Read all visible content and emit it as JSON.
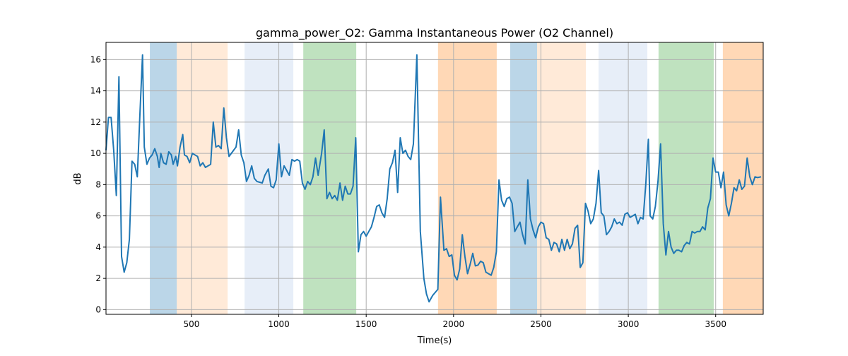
{
  "chart_data": {
    "type": "line",
    "title": "gamma_power_O2: Gamma Instantaneous Power (O2 Channel)",
    "xlabel": "Time(s)",
    "ylabel": "dB",
    "xlim": [
      11,
      3772
    ],
    "ylim": [
      -0.3,
      17.1
    ],
    "xticks": [
      500,
      1000,
      1500,
      2000,
      2500,
      3000,
      3500
    ],
    "yticks": [
      0,
      2,
      4,
      6,
      8,
      10,
      12,
      14,
      16
    ],
    "grid": true,
    "line_color": "#1f77b4",
    "bands": [
      {
        "start": 262,
        "end": 416,
        "color": "#1f77b4",
        "alpha": 0.3
      },
      {
        "start": 416,
        "end": 707,
        "color": "#ff7f0e",
        "alpha": 0.16
      },
      {
        "start": 804,
        "end": 1083,
        "color": "#aec7e8",
        "alpha": 0.3
      },
      {
        "start": 1140,
        "end": 1443,
        "color": "#2ca02c",
        "alpha": 0.3
      },
      {
        "start": 1911,
        "end": 2247,
        "color": "#ff7f0e",
        "alpha": 0.3
      },
      {
        "start": 2324,
        "end": 2478,
        "color": "#1f77b4",
        "alpha": 0.3
      },
      {
        "start": 2478,
        "end": 2757,
        "color": "#ff7f0e",
        "alpha": 0.16
      },
      {
        "start": 2830,
        "end": 3109,
        "color": "#aec7e8",
        "alpha": 0.3
      },
      {
        "start": 3173,
        "end": 3489,
        "color": "#2ca02c",
        "alpha": 0.3
      },
      {
        "start": 3541,
        "end": 3772,
        "color": "#ff7f0e",
        "alpha": 0.3
      }
    ],
    "series": [
      {
        "name": "gamma_power_O2",
        "x": [
          10,
          25,
          40,
          55,
          70,
          85,
          100,
          115,
          130,
          145,
          160,
          175,
          190,
          205,
          220,
          230,
          245,
          260,
          275,
          290,
          305,
          315,
          325,
          340,
          355,
          370,
          385,
          395,
          410,
          420,
          435,
          450,
          460,
          475,
          490,
          505,
          520,
          535,
          550,
          565,
          580,
          595,
          610,
          625,
          640,
          655,
          670,
          685,
          700,
          715,
          735,
          755,
          770,
          785,
          800,
          815,
          830,
          845,
          860,
          875,
          890,
          905,
          920,
          940,
          955,
          970,
          985,
          1000,
          1015,
          1030,
          1045,
          1060,
          1075,
          1090,
          1105,
          1120,
          1135,
          1150,
          1165,
          1180,
          1195,
          1210,
          1225,
          1245,
          1260,
          1275,
          1290,
          1305,
          1320,
          1335,
          1350,
          1365,
          1380,
          1395,
          1410,
          1425,
          1440,
          1455,
          1470,
          1485,
          1500,
          1515,
          1530,
          1545,
          1560,
          1575,
          1590,
          1605,
          1620,
          1635,
          1650,
          1665,
          1680,
          1695,
          1710,
          1725,
          1740,
          1755,
          1770,
          1790,
          1810,
          1830,
          1845,
          1860,
          1880,
          1910,
          1925,
          1945,
          1960,
          1975,
          1990,
          2005,
          2020,
          2035,
          2050,
          2065,
          2080,
          2095,
          2110,
          2125,
          2140,
          2155,
          2170,
          2185,
          2200,
          2215,
          2230,
          2245,
          2260,
          2275,
          2290,
          2305,
          2320,
          2335,
          2350,
          2365,
          2380,
          2395,
          2410,
          2425,
          2440,
          2455,
          2470,
          2485,
          2500,
          2515,
          2530,
          2545,
          2560,
          2575,
          2590,
          2605,
          2620,
          2635,
          2650,
          2665,
          2680,
          2695,
          2710,
          2725,
          2740,
          2755,
          2770,
          2785,
          2800,
          2815,
          2830,
          2845,
          2860,
          2875,
          2890,
          2905,
          2920,
          2935,
          2950,
          2965,
          2980,
          2995,
          3010,
          3025,
          3040,
          3055,
          3070,
          3085,
          3100,
          3115,
          3125,
          3140,
          3155,
          3170,
          3185,
          3200,
          3215,
          3230,
          3245,
          3260,
          3275,
          3290,
          3305,
          3320,
          3335,
          3350,
          3365,
          3380,
          3395,
          3410,
          3425,
          3440,
          3455,
          3470,
          3485,
          3500,
          3515,
          3530,
          3545,
          3560,
          3575,
          3590,
          3605,
          3620,
          3635,
          3650,
          3665,
          3680,
          3695,
          3710,
          3725,
          3740,
          3760
        ],
        "y": [
          10.2,
          12.3,
          12.3,
          10.2,
          7.3,
          14.9,
          3.4,
          2.4,
          3.0,
          4.5,
          9.5,
          9.3,
          8.5,
          12.5,
          16.3,
          10.4,
          9.3,
          9.7,
          9.9,
          10.3,
          9.8,
          9.1,
          10.0,
          9.4,
          9.3,
          10.1,
          9.9,
          9.3,
          9.8,
          9.2,
          10.4,
          11.2,
          9.9,
          9.8,
          9.4,
          10.0,
          9.9,
          9.8,
          9.2,
          9.4,
          9.1,
          9.2,
          9.3,
          12.0,
          10.4,
          10.5,
          10.3,
          12.9,
          11.0,
          9.8,
          10.1,
          10.4,
          11.5,
          9.9,
          9.4,
          8.2,
          8.6,
          9.2,
          8.4,
          8.2,
          8.15,
          8.1,
          8.6,
          9.0,
          7.9,
          7.8,
          8.3,
          10.6,
          8.5,
          9.2,
          8.9,
          8.6,
          9.6,
          9.5,
          9.6,
          9.5,
          8.1,
          7.7,
          8.2,
          8.0,
          8.5,
          9.7,
          8.6,
          10.0,
          11.5,
          7.1,
          7.5,
          7.1,
          7.3,
          7.0,
          8.1,
          7.0,
          7.9,
          7.4,
          7.4,
          7.9,
          11.0,
          3.7,
          4.8,
          5.0,
          4.7,
          5.0,
          5.3,
          5.9,
          6.6,
          6.7,
          6.2,
          5.9,
          7.1,
          9.0,
          9.4,
          10.2,
          7.5,
          11.0,
          10.0,
          10.2,
          9.8,
          9.6,
          10.6,
          16.3,
          5.0,
          2.0,
          1.0,
          0.5,
          0.9,
          1.3,
          7.2,
          3.8,
          3.9,
          3.4,
          3.5,
          2.2,
          1.9,
          2.6,
          4.8,
          3.4,
          2.3,
          2.9,
          3.6,
          2.8,
          2.85,
          3.1,
          3.0,
          2.4,
          2.3,
          2.2,
          2.7,
          3.7,
          8.3,
          7.0,
          6.6,
          7.1,
          7.2,
          6.8,
          5.0,
          5.3,
          5.6,
          4.8,
          4.2,
          8.3,
          5.8,
          5.1,
          4.6,
          5.3,
          5.6,
          5.5,
          4.6,
          4.5,
          3.8,
          4.3,
          4.2,
          3.7,
          4.5,
          3.8,
          4.5,
          3.9,
          4.2,
          5.2,
          5.4,
          2.7,
          3.0,
          6.8,
          6.3,
          5.5,
          5.8,
          6.8,
          8.9,
          6.2,
          6.0,
          4.8,
          5.0,
          5.3,
          5.8,
          5.5,
          5.6,
          5.4,
          6.1,
          6.2,
          5.9,
          6.0,
          6.1,
          5.5,
          5.9,
          5.8,
          8.0,
          10.9,
          6.0,
          5.8,
          6.6,
          8.2,
          10.6,
          5.5,
          3.5,
          5.0,
          4.0,
          3.6,
          3.8,
          3.8,
          3.7,
          4.1,
          4.3,
          4.2,
          5.0,
          4.9,
          5.0,
          5.0,
          5.3,
          5.1,
          6.5,
          7.1,
          9.7,
          8.8,
          8.8,
          7.8,
          8.8,
          6.7,
          6.0,
          6.8,
          7.8,
          7.6,
          8.3,
          7.7,
          7.9,
          9.7,
          8.5,
          8.0,
          8.5,
          8.45,
          8.5
        ]
      }
    ]
  }
}
